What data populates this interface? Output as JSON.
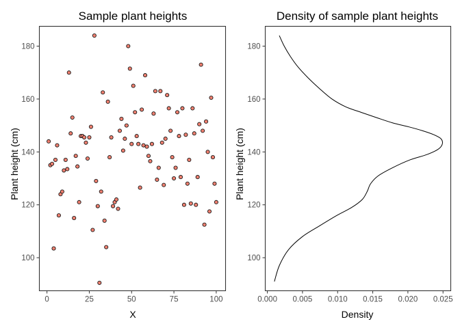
{
  "chart_data": [
    {
      "type": "scatter",
      "title": "Sample plant heights",
      "xlabel": "X",
      "ylabel": "Plant height (cm)",
      "xlim": [
        -4.5,
        105.5
      ],
      "ylim": [
        87.5,
        187.5
      ],
      "xticks": [
        0,
        25,
        50,
        75,
        100
      ],
      "yticks": [
        100,
        120,
        140,
        160,
        180
      ],
      "grid": false,
      "point_color": "#f08070",
      "x": [
        1,
        2,
        3,
        4,
        5,
        6,
        7,
        8,
        9,
        10,
        11,
        12,
        13,
        14,
        15,
        16,
        17,
        18,
        19,
        20,
        21,
        22,
        23,
        24,
        25,
        26,
        27,
        28,
        29,
        30,
        31,
        32,
        33,
        34,
        35,
        36,
        37,
        38,
        39,
        40,
        41,
        42,
        43,
        44,
        45,
        46,
        47,
        48,
        49,
        50,
        51,
        52,
        53,
        54,
        55,
        56,
        57,
        58,
        59,
        60,
        61,
        62,
        63,
        64,
        65,
        66,
        67,
        68,
        69,
        70,
        71,
        72,
        73,
        74,
        75,
        76,
        77,
        78,
        79,
        80,
        81,
        82,
        83,
        84,
        85,
        86,
        87,
        88,
        89,
        90,
        91,
        92,
        93,
        94,
        95,
        96,
        97,
        98,
        99,
        100
      ],
      "y": [
        144,
        135,
        135.5,
        103.5,
        137,
        142.5,
        116,
        124,
        125,
        133,
        137,
        133.5,
        170,
        147,
        153,
        115,
        138.5,
        134.5,
        121,
        146,
        146,
        145.5,
        143.5,
        137.5,
        145.5,
        149.5,
        110.5,
        184,
        129,
        119.5,
        90.5,
        125,
        162.5,
        114,
        104,
        159,
        138,
        145.5,
        119.5,
        121,
        122,
        118.5,
        148,
        152.5,
        140.5,
        145,
        150,
        180,
        171.5,
        143,
        165,
        155,
        146,
        143,
        126.5,
        156,
        142.5,
        169,
        142,
        138.5,
        136.5,
        143,
        154.5,
        163,
        129.5,
        134,
        163,
        143.5,
        127.5,
        145,
        161.5,
        156.5,
        148,
        138,
        130,
        134,
        155,
        146,
        130.5,
        156.5,
        120,
        146.5,
        128,
        137,
        120.5,
        156.5,
        147,
        120,
        130.5,
        150.5,
        173,
        148,
        112.5,
        151.5,
        140,
        117.5,
        160.5,
        138,
        128,
        121
      ]
    },
    {
      "type": "line",
      "title": "Density of sample plant heights",
      "xlabel": "Density",
      "ylabel": "Plant height (cm)",
      "xlim": [
        -0.0003,
        0.0261
      ],
      "ylim": [
        87.5,
        187.5
      ],
      "xticks": [
        0.0,
        0.005,
        0.01,
        0.015,
        0.02,
        0.025
      ],
      "xtick_labels": [
        "0.000",
        "0.005",
        "0.010",
        "0.015",
        "0.020",
        "0.025"
      ],
      "yticks": [
        100,
        120,
        140,
        160,
        180
      ],
      "grid": false,
      "series": [
        {
          "x": [
            0.0017,
            0.0024,
            0.0033,
            0.0044,
            0.0058,
            0.0074,
            0.0092,
            0.0112,
            0.0133,
            0.0155,
            0.0178,
            0.0201,
            0.0221,
            0.0237,
            0.0247,
            0.0249,
            0.0243,
            0.0227,
            0.0203,
            0.0178,
            0.0158,
            0.0147,
            0.0142,
            0.0135,
            0.012,
            0.0099,
            0.0074,
            0.005,
            0.003,
            0.0017,
            0.001
          ],
          "y": [
            184,
            180,
            176,
            172,
            168,
            164,
            160,
            157,
            155,
            153,
            151,
            149.5,
            148,
            146.5,
            145,
            143,
            141,
            139,
            137,
            134,
            131,
            128,
            125,
            122,
            119,
            116,
            112,
            108,
            103,
            97,
            91
          ]
        }
      ]
    }
  ]
}
